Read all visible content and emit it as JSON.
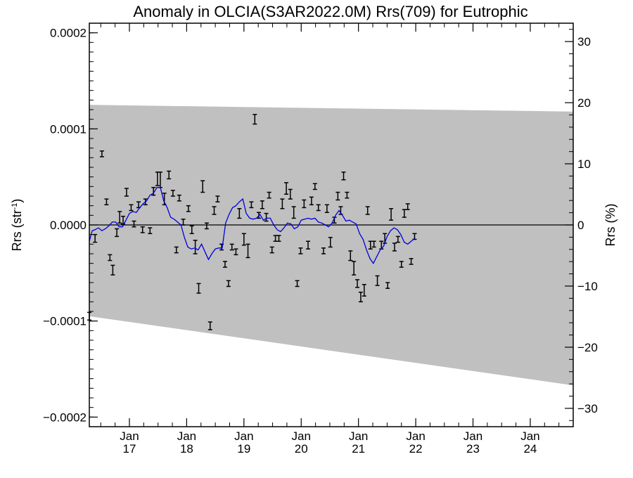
{
  "chart_data": {
    "type": "scatter",
    "title": "Anomaly in OLCIA(S3AR2022.0M) Rrs(709) for Eutrophic",
    "ylabel": "Rrs (str",
    "ylabel_sup": "-1",
    "ylabel_close": ")",
    "ylabel_right": "Rrs (%)",
    "xlabel": "",
    "xlim": [
      2016.3,
      2024.75
    ],
    "ylim": [
      -0.00021,
      0.00021
    ],
    "ylim_right": [
      -33,
      33
    ],
    "grid": false,
    "x_ticks": [
      {
        "x": 2017.0,
        "month": "Jan",
        "year": "17"
      },
      {
        "x": 2018.0,
        "month": "Jan",
        "year": "18"
      },
      {
        "x": 2019.0,
        "month": "Jan",
        "year": "19"
      },
      {
        "x": 2020.0,
        "month": "Jan",
        "year": "20"
      },
      {
        "x": 2021.0,
        "month": "Jan",
        "year": "21"
      },
      {
        "x": 2022.0,
        "month": "Jan",
        "year": "22"
      },
      {
        "x": 2023.0,
        "month": "Jan",
        "year": "23"
      },
      {
        "x": 2024.0,
        "month": "Jan",
        "year": "24"
      }
    ],
    "y_ticks_left": [
      {
        "v": 0.0002,
        "label": "0.0002"
      },
      {
        "v": 0.0001,
        "label": "0.0001"
      },
      {
        "v": 0.0,
        "label": "0.0000"
      },
      {
        "v": -0.0001,
        "label": "−0.0001"
      },
      {
        "v": -0.0002,
        "label": "−0.0002"
      }
    ],
    "y_ticks_right": [
      {
        "v": 30,
        "label": "30"
      },
      {
        "v": 20,
        "label": "20"
      },
      {
        "v": 10,
        "label": "10"
      },
      {
        "v": 0,
        "label": "0"
      },
      {
        "v": -10,
        "label": "−10"
      },
      {
        "v": -20,
        "label": "−20"
      },
      {
        "v": -30,
        "label": "−30"
      }
    ],
    "band": {
      "x": [
        2016.3,
        2024.75
      ],
      "upper": [
        0.000125,
        0.000118
      ],
      "lower": [
        -9.5e-05,
        -0.000167
      ],
      "color": "#c0c0c0"
    },
    "zero_line": 0.0,
    "points_color": "#000000",
    "points": [
      [
        2016.3,
        -9.5e-05,
        4e-06
      ],
      [
        2016.4,
        -1.4e-05,
        4e-06
      ],
      [
        2016.52,
        7.4e-05,
        3e-06
      ],
      [
        2016.6,
        2.4e-05,
        3e-06
      ],
      [
        2016.66,
        -3.4e-05,
        3e-06
      ],
      [
        2016.71,
        -4.7e-05,
        5e-06
      ],
      [
        2016.78,
        -8e-06,
        4e-06
      ],
      [
        2016.83,
        8e-06,
        6e-06
      ],
      [
        2016.89,
        5e-06,
        4e-06
      ],
      [
        2016.95,
        3.4e-05,
        4e-06
      ],
      [
        2017.03,
        1.8e-05,
        3e-06
      ],
      [
        2017.08,
        1e-06,
        3e-06
      ],
      [
        2017.16,
        2.1e-05,
        3e-06
      ],
      [
        2017.23,
        -5e-06,
        3e-06
      ],
      [
        2017.28,
        2.4e-05,
        3e-06
      ],
      [
        2017.36,
        -6e-06,
        3e-06
      ],
      [
        2017.42,
        3.5e-05,
        4e-06
      ],
      [
        2017.49,
        4.8e-05,
        7e-06
      ],
      [
        2017.54,
        4.7e-05,
        8e-06
      ],
      [
        2017.61,
        2.7e-05,
        6e-06
      ],
      [
        2017.69,
        5.2e-05,
        4e-06
      ],
      [
        2017.76,
        3.3e-05,
        3e-06
      ],
      [
        2017.82,
        -2.6e-05,
        3e-06
      ],
      [
        2017.87,
        2.8e-05,
        3e-06
      ],
      [
        2017.94,
        3e-06,
        3e-06
      ],
      [
        2018.03,
        1.7e-05,
        3e-06
      ],
      [
        2018.09,
        -5e-06,
        4e-06
      ],
      [
        2018.15,
        -2.3e-05,
        7e-06
      ],
      [
        2018.21,
        -6.6e-05,
        5e-06
      ],
      [
        2018.28,
        4e-05,
        6e-06
      ],
      [
        2018.35,
        -1e-06,
        3e-06
      ],
      [
        2018.41,
        -0.000105,
        4e-06
      ],
      [
        2018.48,
        1.5e-05,
        4e-06
      ],
      [
        2018.54,
        2.7e-05,
        3e-06
      ],
      [
        2018.61,
        -2.3e-05,
        3e-06
      ],
      [
        2018.67,
        -4.1e-05,
        3e-06
      ],
      [
        2018.73,
        -6.1e-05,
        3e-06
      ],
      [
        2018.79,
        -2.3e-05,
        3e-06
      ],
      [
        2018.86,
        -2.8e-05,
        3e-06
      ],
      [
        2018.92,
        1.2e-05,
        5e-06
      ],
      [
        2019.0,
        -1.5e-05,
        6e-06
      ],
      [
        2019.07,
        -2.7e-05,
        7e-06
      ],
      [
        2019.13,
        2.1e-05,
        3e-06
      ],
      [
        2019.19,
        0.00011,
        5e-06
      ],
      [
        2019.26,
        1e-05,
        3e-06
      ],
      [
        2019.32,
        2.1e-05,
        4e-06
      ],
      [
        2019.39,
        8e-06,
        4e-06
      ],
      [
        2019.44,
        3.1e-05,
        3e-06
      ],
      [
        2019.49,
        -2.6e-05,
        3e-06
      ],
      [
        2019.55,
        -1.4e-05,
        3e-06
      ],
      [
        2019.61,
        -1.4e-05,
        3e-06
      ],
      [
        2019.67,
        2.2e-05,
        5e-06
      ],
      [
        2019.74,
        3.8e-05,
        6e-06
      ],
      [
        2019.81,
        3.2e-05,
        5e-06
      ],
      [
        2019.87,
        1.3e-05,
        6e-06
      ],
      [
        2019.93,
        -6.1e-05,
        3e-06
      ],
      [
        2019.99,
        -2.7e-05,
        3e-06
      ],
      [
        2020.05,
        2.2e-05,
        4e-06
      ],
      [
        2020.12,
        -2.1e-05,
        4e-06
      ],
      [
        2020.18,
        2.5e-05,
        4e-06
      ],
      [
        2020.24,
        4e-05,
        3e-06
      ],
      [
        2020.3,
        1.8e-05,
        3e-06
      ],
      [
        2020.39,
        -2.7e-05,
        3e-06
      ],
      [
        2020.45,
        1.7e-05,
        4e-06
      ],
      [
        2020.51,
        -1.8e-05,
        5e-06
      ],
      [
        2020.58,
        5e-06,
        3e-06
      ],
      [
        2020.64,
        3e-05,
        4e-06
      ],
      [
        2020.69,
        1.5e-05,
        4e-06
      ],
      [
        2020.74,
        5.1e-05,
        4e-06
      ],
      [
        2020.8,
        3.1e-05,
        3e-06
      ],
      [
        2020.86,
        -3.2e-05,
        5e-06
      ],
      [
        2020.92,
        -4.5e-05,
        7e-06
      ],
      [
        2020.98,
        -6.1e-05,
        4e-06
      ],
      [
        2021.04,
        -7.5e-05,
        5e-06
      ],
      [
        2021.1,
        -6.8e-05,
        6e-06
      ],
      [
        2021.16,
        1.5e-05,
        4e-06
      ],
      [
        2021.21,
        -2.1e-05,
        4e-06
      ],
      [
        2021.27,
        -2e-05,
        3e-06
      ],
      [
        2021.33,
        -5.8e-05,
        5e-06
      ],
      [
        2021.4,
        -2.1e-05,
        4e-06
      ],
      [
        2021.46,
        -1.4e-05,
        5e-06
      ],
      [
        2021.51,
        -6.3e-05,
        3e-06
      ],
      [
        2021.57,
        1.1e-05,
        6e-06
      ],
      [
        2021.63,
        -2.3e-05,
        4e-06
      ],
      [
        2021.69,
        -1.5e-05,
        3e-06
      ],
      [
        2021.75,
        -4.1e-05,
        3e-06
      ],
      [
        2021.8,
        1.2e-05,
        4e-06
      ],
      [
        2021.86,
        1.9e-05,
        3e-06
      ],
      [
        2021.92,
        -3.8e-05,
        3e-06
      ],
      [
        2021.98,
        -1.2e-05,
        3e-06
      ]
    ],
    "series": [
      {
        "color": "#0000dd",
        "x": [
          2016.3,
          2016.35,
          2016.4,
          2016.46,
          2016.52,
          2016.58,
          2016.64,
          2016.7,
          2016.76,
          2016.82,
          2016.88,
          2016.94,
          2017.0,
          2017.06,
          2017.12,
          2017.18,
          2017.24,
          2017.3,
          2017.36,
          2017.42,
          2017.48,
          2017.54,
          2017.6,
          2017.66,
          2017.72,
          2017.78,
          2017.84,
          2017.9,
          2017.96,
          2018.02,
          2018.08,
          2018.14,
          2018.2,
          2018.26,
          2018.32,
          2018.38,
          2018.44,
          2018.5,
          2018.56,
          2018.62,
          2018.68,
          2018.74,
          2018.8,
          2018.86,
          2018.92,
          2018.98,
          2019.04,
          2019.1,
          2019.16,
          2019.22,
          2019.28,
          2019.34,
          2019.4,
          2019.46,
          2019.52,
          2019.58,
          2019.64,
          2019.7,
          2019.76,
          2019.82,
          2019.88,
          2019.94,
          2020.0,
          2020.06,
          2020.12,
          2020.18,
          2020.24,
          2020.3,
          2020.36,
          2020.42,
          2020.48,
          2020.54,
          2020.6,
          2020.66,
          2020.72,
          2020.78,
          2020.84,
          2020.9,
          2020.96,
          2021.02,
          2021.08,
          2021.14,
          2021.2,
          2021.26,
          2021.32,
          2021.38,
          2021.44,
          2021.5,
          2021.56,
          2021.62,
          2021.68,
          2021.74,
          2021.8,
          2021.86,
          2021.92,
          2021.98
        ],
        "y": [
          -1.7e-05,
          -6e-06,
          -5e-06,
          -3e-06,
          -6e-06,
          -4e-06,
          -1e-06,
          3e-06,
          3e-06,
          -2e-06,
          -2e-06,
          5e-06,
          1.2e-05,
          1.4e-05,
          1.3e-05,
          1.8e-05,
          2.2e-05,
          2.5e-05,
          3.1e-05,
          3.3e-05,
          3.9e-05,
          3.9e-05,
          2.5e-05,
          1.8e-05,
          8e-06,
          6e-06,
          3e-06,
          0.0,
          -1.3e-05,
          -2.3e-05,
          -2.5e-05,
          -2.4e-05,
          -2.6e-05,
          -2e-05,
          -2.8e-05,
          -3.6e-05,
          -3e-05,
          -2.5e-05,
          -2.4e-05,
          -2.4e-05,
          2e-06,
          1.1e-05,
          1.8e-05,
          2e-05,
          2.4e-05,
          2.7e-05,
          1.2e-05,
          7e-06,
          6e-06,
          7e-06,
          1.1e-05,
          5e-06,
          7e-06,
          7e-06,
          0.0,
          -5e-06,
          -7e-06,
          -3e-06,
          2e-06,
          1e-06,
          -4e-06,
          -2e-06,
          5e-06,
          6e-06,
          7e-06,
          6e-06,
          7e-06,
          3e-06,
          2e-06,
          0.0,
          -2e-06,
          2e-06,
          1e-05,
          1.5e-05,
          1e-05,
          4e-06,
          5e-06,
          3e-06,
          1e-06,
          -9e-06,
          -1.5e-05,
          -2.6e-05,
          -3.5e-05,
          -4e-05,
          -3.3e-05,
          -2.6e-05,
          -2.2e-05,
          -1.2e-05,
          -6e-06,
          -3e-06,
          -5e-06,
          -1e-05,
          -1.8e-05,
          -2e-05,
          -1.7e-05,
          -1.4e-05
        ]
      }
    ]
  }
}
